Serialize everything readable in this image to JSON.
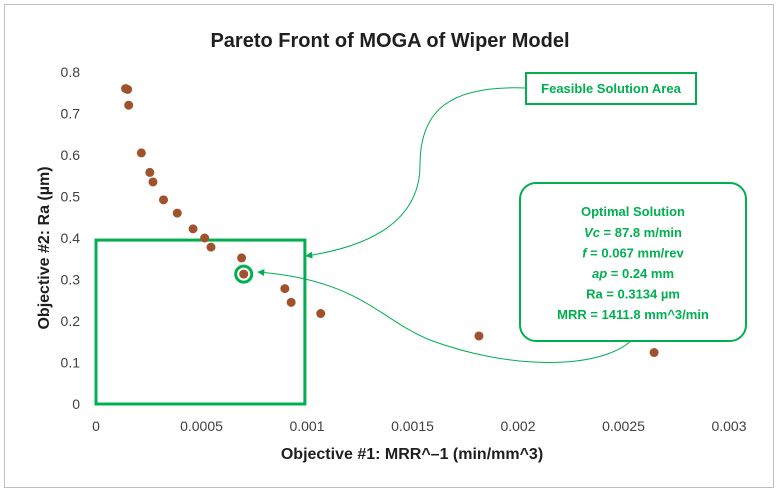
{
  "chart_data": {
    "type": "scatter",
    "title": "Pareto Front of MOGA of Wiper Model",
    "xlabel": "Objective #1: MRR^–1 (min/mm^3)",
    "ylabel": "Objective #2: Ra (µm)",
    "xlim": [
      0,
      0.003
    ],
    "ylim": [
      0,
      0.8
    ],
    "x_ticks": [
      "0",
      "0.0005",
      "0.001",
      "0.0015",
      "0.002",
      "0.0025",
      "0.003"
    ],
    "y_ticks": [
      "0",
      "0.1",
      "0.2",
      "0.3",
      "0.4",
      "0.5",
      "0.6",
      "0.7",
      "0.8"
    ],
    "grid": false,
    "legend": "none",
    "point_color": "#a0522d",
    "accent_color": "#00b050",
    "points": [
      {
        "x": 0.00014,
        "y": 0.76
      },
      {
        "x": 0.00015,
        "y": 0.758
      },
      {
        "x": 0.000155,
        "y": 0.72
      },
      {
        "x": 0.000215,
        "y": 0.605
      },
      {
        "x": 0.000255,
        "y": 0.558
      },
      {
        "x": 0.00027,
        "y": 0.535
      },
      {
        "x": 0.00032,
        "y": 0.492
      },
      {
        "x": 0.000385,
        "y": 0.46
      },
      {
        "x": 0.00046,
        "y": 0.422
      },
      {
        "x": 0.000515,
        "y": 0.4
      },
      {
        "x": 0.000545,
        "y": 0.378
      },
      {
        "x": 0.00069,
        "y": 0.352
      },
      {
        "x": 0.0007,
        "y": 0.313
      },
      {
        "x": 0.000895,
        "y": 0.278
      },
      {
        "x": 0.000925,
        "y": 0.245
      },
      {
        "x": 0.001065,
        "y": 0.218
      },
      {
        "x": 0.001815,
        "y": 0.164
      },
      {
        "x": 0.002645,
        "y": 0.124
      }
    ],
    "feasible_area": {
      "x": [
        0,
        0.00099
      ],
      "y": [
        0,
        0.395
      ]
    },
    "optimal_point": {
      "x": 0.0007,
      "y": 0.313
    },
    "annotations": {
      "feasible_label": "Feasible Solution Area",
      "optimal_title": "Optimal Solution",
      "optimal_lines": [
        {
          "name": "Vc",
          "rest": " = 87.8 m/min"
        },
        {
          "name": "f",
          "rest": " = 0.067 mm/rev"
        },
        {
          "name": "ap",
          "rest": " = 0.24 mm"
        },
        {
          "name": "",
          "rest": "Ra = 0.3134 µm"
        },
        {
          "name": "",
          "rest": "MRR = 1411.8 mm^3/min"
        }
      ]
    }
  }
}
